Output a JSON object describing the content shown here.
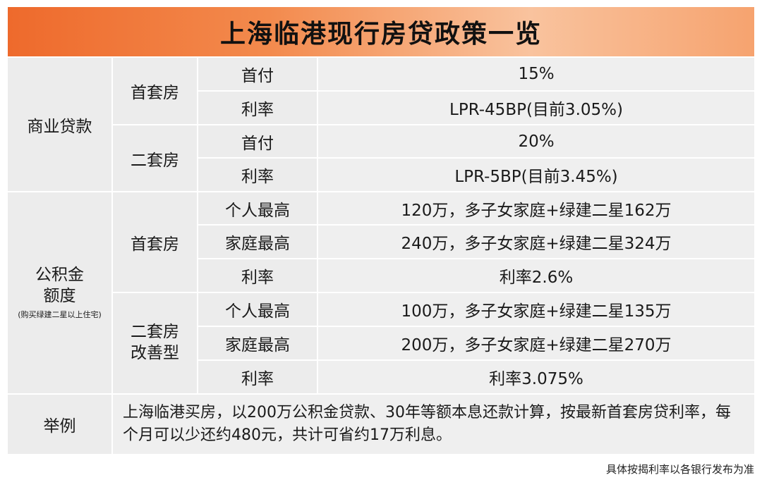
{
  "title": "上海临港现行房贷政策一览",
  "commercial": {
    "label": "商业贷款",
    "first_home": {
      "label": "首套房",
      "rows": [
        {
          "item": "首付",
          "value": "15%"
        },
        {
          "item": "利率",
          "value": "LPR-45BP(目前3.05%)"
        }
      ]
    },
    "second_home": {
      "label": "二套房",
      "rows": [
        {
          "item": "首付",
          "value": "20%"
        },
        {
          "item": "利率",
          "value": "LPR-5BP(目前3.45%)"
        }
      ]
    }
  },
  "provident": {
    "label_line1": "公积金",
    "label_line2": "额度",
    "note": "(购买绿建二星以上住宅)",
    "first_home": {
      "label": "首套房",
      "rows": [
        {
          "item": "个人最高",
          "value": "120万，多子女家庭+绿建二星162万"
        },
        {
          "item": "家庭最高",
          "value": "240万，多子女家庭+绿建二星324万"
        },
        {
          "item": "利率",
          "value": "利率2.6%"
        }
      ]
    },
    "second_home": {
      "label_line1": "二套房",
      "label_line2": "改善型",
      "rows": [
        {
          "item": "个人最高",
          "value": "100万，多子女家庭+绿建二星135万"
        },
        {
          "item": "家庭最高",
          "value": "200万，多子女家庭+绿建二星270万"
        },
        {
          "item": "利率",
          "value": "利率3.075%"
        }
      ]
    }
  },
  "example": {
    "label": "举例",
    "text": "上海临港买房，以200万公积金贷款、30年等额本息还款计算，按最新首套房贷利率，每个月可以少还约480元，共计可省约17万利息。"
  },
  "footnote": "具体按揭利率以各银行发布为准"
}
